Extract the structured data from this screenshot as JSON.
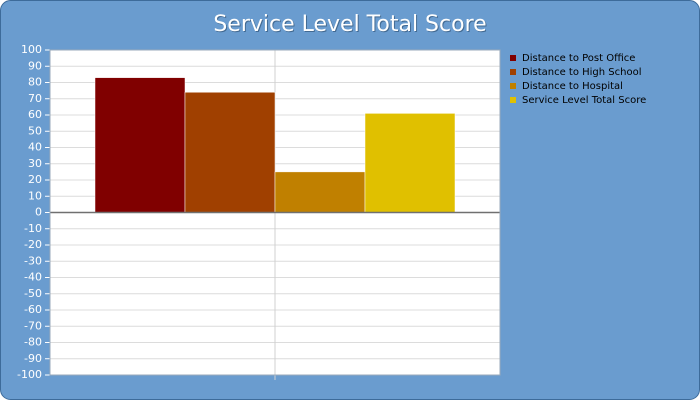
{
  "chart_data": {
    "type": "bar",
    "title": "Service Level Total Score",
    "categories": [
      null
    ],
    "series": [
      {
        "name": "Distance to Post Office",
        "color": "#800000",
        "values": [
          83
        ]
      },
      {
        "name": "Distance to High School",
        "color": "#a04000",
        "values": [
          74
        ]
      },
      {
        "name": "Distance to Hospital",
        "color": "#c08000",
        "values": [
          25
        ]
      },
      {
        "name": "Service Level Total Score",
        "color": "#e0c000",
        "values": [
          61
        ]
      }
    ],
    "ylim": [
      -100,
      100
    ],
    "yticks": [
      -100,
      -90,
      -80,
      -70,
      -60,
      -50,
      -40,
      -30,
      -20,
      -10,
      0,
      10,
      20,
      30,
      40,
      50,
      60,
      70,
      80,
      90,
      100
    ],
    "grid": true,
    "legend": "right"
  }
}
